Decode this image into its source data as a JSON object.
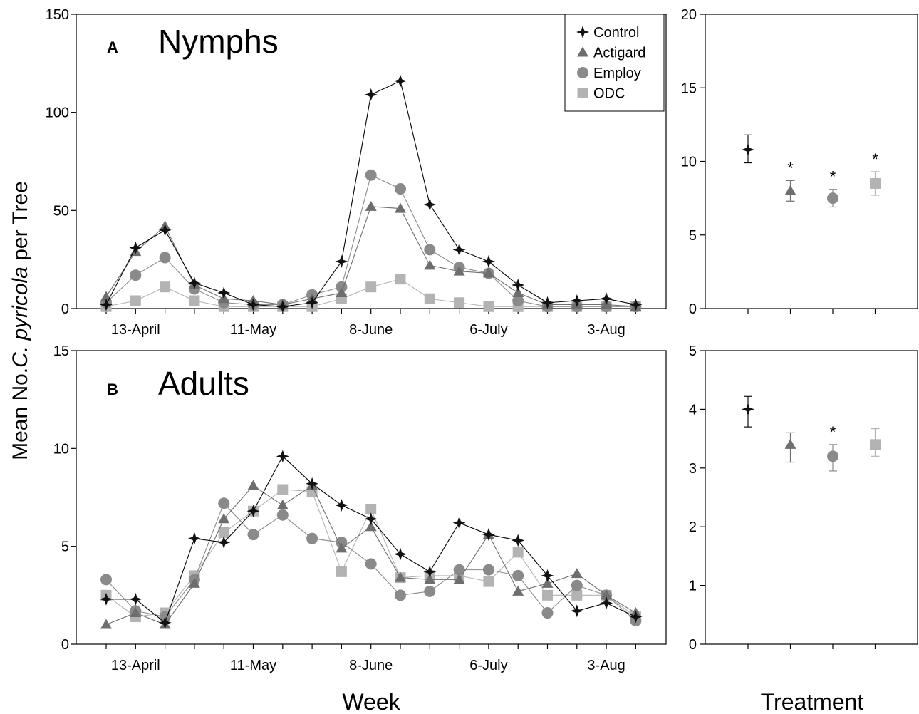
{
  "ylabel_plain": "Mean No.",
  "ylabel_italic": "C. pyricola",
  "ylabel_tail": " per Tree",
  "xlabel_week": "Week",
  "xlabel_treatment": "Treatment",
  "legend": [
    "Control",
    "Actigard",
    "Employ",
    "ODC"
  ],
  "colors": {
    "Control": "#111111",
    "Actigard": "#6e6e6e",
    "Employ": "#8a8a8a",
    "ODC": "#b3b3b3"
  },
  "chart_data": [
    {
      "type": "line",
      "panel_letter": "A",
      "title": "Nymphs",
      "x": [
        "6-Apr",
        "13-Apr",
        "20-Apr",
        "27-Apr",
        "4-May",
        "11-May",
        "18-May",
        "25-May",
        "1-Jun",
        "8-Jun",
        "15-Jun",
        "22-Jun",
        "29-Jun",
        "6-Jul",
        "13-Jul",
        "20-Jul",
        "27-Jul",
        "3-Aug",
        "10-Aug"
      ],
      "xticks": [
        "13-April",
        "11-May",
        "8-June",
        "6-July",
        "3-Aug"
      ],
      "ylim": [
        0,
        150
      ],
      "yticks": [
        0,
        50,
        100,
        150
      ],
      "series": [
        {
          "name": "Control",
          "values": [
            2,
            31,
            40,
            13,
            8,
            2,
            1,
            3,
            24,
            109,
            116,
            53,
            30,
            24,
            12,
            3,
            4,
            5,
            2
          ]
        },
        {
          "name": "Actigard",
          "values": [
            6,
            29,
            42,
            12,
            5,
            4,
            2,
            5,
            8,
            52,
            51,
            22,
            19,
            18,
            8,
            2,
            2,
            2,
            1
          ]
        },
        {
          "name": "Employ",
          "values": [
            3,
            17,
            26,
            10,
            3,
            2,
            2,
            7,
            11,
            68,
            61,
            30,
            21,
            18,
            4,
            1,
            1,
            1,
            1
          ]
        },
        {
          "name": "ODC",
          "values": [
            1,
            4,
            11,
            4,
            1,
            1,
            1,
            1,
            5,
            11,
            15,
            5,
            3,
            1,
            1,
            1,
            1,
            1,
            1
          ]
        }
      ]
    },
    {
      "type": "scatter",
      "title": "",
      "categories": [
        "Control",
        "Actigard",
        "Employ",
        "ODC"
      ],
      "ylim": [
        0,
        20
      ],
      "yticks": [
        0,
        5,
        10,
        15,
        20
      ],
      "values": [
        10.8,
        8.0,
        7.5,
        8.5
      ],
      "err_low": [
        9.9,
        7.3,
        6.9,
        7.7
      ],
      "err_high": [
        11.8,
        8.7,
        8.1,
        9.3
      ],
      "significance": [
        "",
        "*",
        "*",
        "*"
      ]
    },
    {
      "type": "line",
      "panel_letter": "B",
      "title": "Adults",
      "x": [
        "6-Apr",
        "13-Apr",
        "20-Apr",
        "27-Apr",
        "4-May",
        "11-May",
        "18-May",
        "25-May",
        "1-Jun",
        "8-Jun",
        "15-Jun",
        "22-Jun",
        "29-Jun",
        "6-Jul",
        "13-Jul",
        "20-Jul",
        "27-Jul",
        "3-Aug",
        "10-Aug"
      ],
      "xticks": [
        "13-April",
        "11-May",
        "8-June",
        "6-July",
        "3-Aug"
      ],
      "ylim": [
        0,
        15
      ],
      "yticks": [
        0,
        5,
        10,
        15
      ],
      "series": [
        {
          "name": "Control",
          "values": [
            2.3,
            2.3,
            1.1,
            5.4,
            5.2,
            6.8,
            9.6,
            8.2,
            7.1,
            6.4,
            4.6,
            3.7,
            6.2,
            5.6,
            5.3,
            3.5,
            1.7,
            2.1,
            1.4
          ]
        },
        {
          "name": "Actigard",
          "values": [
            1.0,
            1.6,
            1.0,
            3.1,
            6.4,
            8.1,
            7.1,
            8.1,
            4.9,
            6.0,
            3.4,
            3.3,
            3.3,
            5.6,
            2.7,
            3.1,
            3.6,
            2.5,
            1.6
          ]
        },
        {
          "name": "Employ",
          "values": [
            3.3,
            1.7,
            1.4,
            3.3,
            7.2,
            5.6,
            6.6,
            5.4,
            5.2,
            4.1,
            2.5,
            2.7,
            3.8,
            3.8,
            3.5,
            1.6,
            3.0,
            2.5,
            1.2
          ]
        },
        {
          "name": "ODC",
          "values": [
            2.5,
            1.4,
            1.6,
            3.5,
            5.7,
            6.8,
            7.9,
            7.8,
            3.7,
            6.9,
            3.4,
            3.5,
            3.5,
            3.2,
            4.7,
            2.5,
            2.5,
            2.5,
            1.4
          ]
        }
      ]
    },
    {
      "type": "scatter",
      "title": "",
      "categories": [
        "Control",
        "Actigard",
        "Employ",
        "ODC"
      ],
      "ylim": [
        0,
        5
      ],
      "yticks": [
        0,
        1,
        2,
        3,
        4,
        5
      ],
      "values": [
        4.0,
        3.4,
        3.2,
        3.4
      ],
      "err_low": [
        3.7,
        3.1,
        2.95,
        3.2
      ],
      "err_high": [
        4.22,
        3.6,
        3.4,
        3.67
      ],
      "significance": [
        "",
        "",
        "*",
        ""
      ]
    }
  ]
}
